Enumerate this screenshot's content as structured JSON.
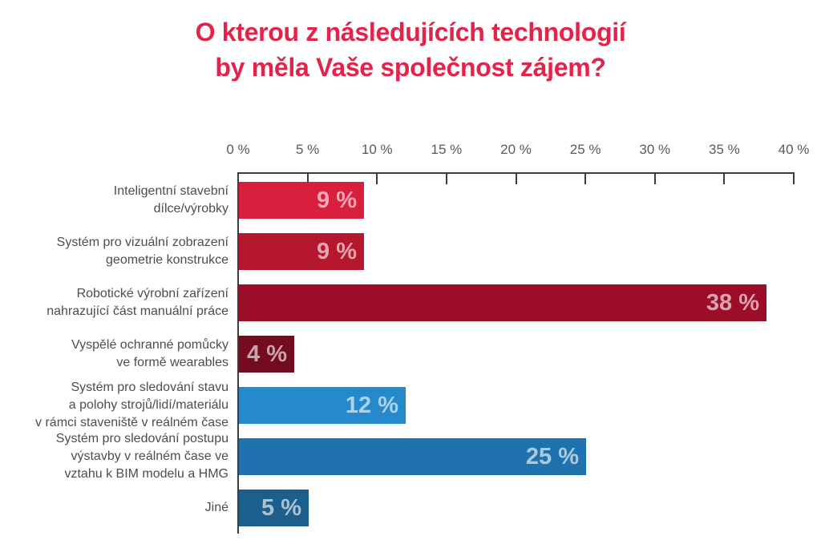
{
  "title": {
    "text": "O kterou z následujících technologií\nby měla Vaše společnost zájem?"
  },
  "colors": {
    "title": "#e2234a",
    "axis": "#3c3c3c",
    "category_text": "#4d4d4f",
    "tick_text": "#58595b"
  },
  "chart_data": {
    "type": "bar",
    "orientation": "horizontal",
    "title": "O kterou z následujících technologií by měla Vaše společnost zájem?",
    "legend": "none",
    "grid": "off",
    "x_axis": {
      "min": 0,
      "max": 40,
      "unit": "%",
      "ticks": [
        "0 %",
        "5 %",
        "10 %",
        "15 %",
        "20 %",
        "25 %",
        "30 %",
        "35 %",
        "40 %"
      ]
    },
    "bars": [
      {
        "label": "Inteligentní stavební\ndílce/výrobky",
        "value": 9,
        "value_label": "9 %",
        "color": "#d91f3e"
      },
      {
        "label": "Systém pro vizuální zobrazení\ngeometrie konstrukce",
        "value": 9,
        "value_label": "9 %",
        "color": "#b5172f"
      },
      {
        "label": "Robotické výrobní zařízení\nnahrazující část manuální práce",
        "value": 38,
        "value_label": "38 %",
        "color": "#9c0e28"
      },
      {
        "label": "Vyspělé ochranné pomůcky\nve formě wearables",
        "value": 4,
        "value_label": "4 %",
        "color": "#740c20"
      },
      {
        "label": "Systém pro sledování stavu\na polohy strojů/lidí/materiálu\nv rámci staveniště v reálném čase",
        "value": 12,
        "value_label": "12 %",
        "color": "#2689cb"
      },
      {
        "label": "Systém pro sledování postupu\nvýstavby v reálném čase ve\nvztahu k BIM modelu a HMG",
        "value": 25,
        "value_label": "25 %",
        "color": "#1f72ae"
      },
      {
        "label": "Jiné",
        "value": 5,
        "value_label": "5 %",
        "color": "#1c5f8c"
      }
    ]
  }
}
